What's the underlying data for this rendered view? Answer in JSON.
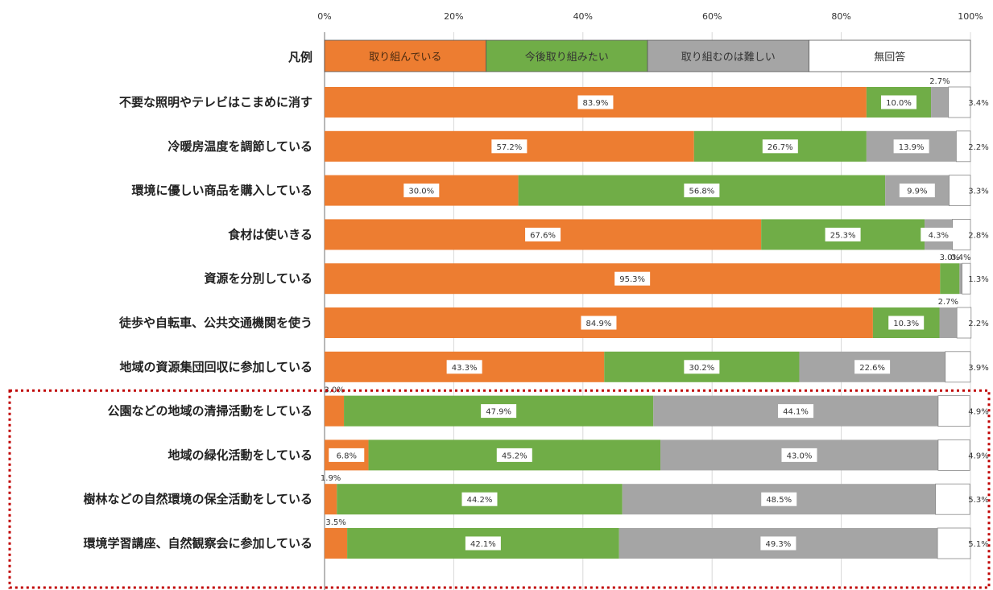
{
  "chart_data": {
    "type": "bar",
    "orientation": "horizontal",
    "stacked": true,
    "xlim": [
      0,
      100
    ],
    "x_ticks": [
      "0%",
      "20%",
      "40%",
      "60%",
      "80%",
      "100%"
    ],
    "legend_title": "凡例",
    "series": [
      {
        "name": "取り組んでいる",
        "color": "#ed7d31"
      },
      {
        "name": "今後取り組みたい",
        "color": "#70ad47"
      },
      {
        "name": "取り組むのは難しい",
        "color": "#a5a5a5"
      },
      {
        "name": "無回答",
        "color": "#ffffff"
      }
    ],
    "categories": [
      {
        "label": "不要な照明やテレビはこまめに消す",
        "values": [
          83.9,
          10.0,
          2.7,
          3.4
        ],
        "labels": [
          "83.9%",
          "10.0%",
          "2.7%",
          "3.4%"
        ]
      },
      {
        "label": "冷暖房温度を調節している",
        "values": [
          57.2,
          26.7,
          13.9,
          2.2
        ],
        "labels": [
          "57.2%",
          "26.7%",
          "13.9%",
          "2.2%"
        ]
      },
      {
        "label": "環境に優しい商品を購入している",
        "values": [
          30.0,
          56.8,
          9.9,
          3.3
        ],
        "labels": [
          "30.0%",
          "56.8%",
          "9.9%",
          "3.3%"
        ]
      },
      {
        "label": "食材は使いきる",
        "values": [
          67.6,
          25.3,
          4.3,
          2.8
        ],
        "labels": [
          "67.6%",
          "25.3%",
          "4.3%",
          "2.8%"
        ]
      },
      {
        "label": "資源を分別している",
        "values": [
          95.3,
          3.0,
          0.4,
          1.3
        ],
        "labels": [
          "95.3%",
          "3.0%",
          "0.4%",
          "1.3%"
        ]
      },
      {
        "label": "徒歩や自転車、公共交通機関を使う",
        "values": [
          84.9,
          10.3,
          2.7,
          2.2
        ],
        "labels": [
          "84.9%",
          "10.3%",
          "2.7%",
          "2.2%"
        ]
      },
      {
        "label": "地域の資源集団回収に参加している",
        "values": [
          43.3,
          30.2,
          22.6,
          3.9
        ],
        "labels": [
          "43.3%",
          "30.2%",
          "22.6%",
          "3.9%"
        ]
      },
      {
        "label": "公園などの地域の清掃活動をしている",
        "values": [
          3.0,
          47.9,
          44.1,
          4.9
        ],
        "labels": [
          "3.0%",
          "47.9%",
          "44.1%",
          "4.9%"
        ]
      },
      {
        "label": "地域の緑化活動をしている",
        "values": [
          6.8,
          45.2,
          43.0,
          4.9
        ],
        "labels": [
          "6.8%",
          "45.2%",
          "43.0%",
          "4.9%"
        ]
      },
      {
        "label": "樹林などの自然環境の保全活動をしている",
        "values": [
          1.9,
          44.2,
          48.5,
          5.3
        ],
        "labels": [
          "1.9%",
          "44.2%",
          "48.5%",
          "5.3%"
        ]
      },
      {
        "label": "環境学習講座、自然観察会に参加している",
        "values": [
          3.5,
          42.1,
          49.3,
          5.1
        ],
        "labels": [
          "3.5%",
          "42.1%",
          "49.3%",
          "5.1%"
        ]
      }
    ],
    "highlight_group": {
      "from_index": 7,
      "to_index": 10,
      "style": "dotted-red-box",
      "color": "#c00000"
    }
  }
}
